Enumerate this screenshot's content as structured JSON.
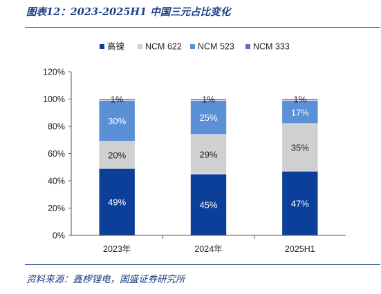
{
  "header": {
    "title": "图表12：2023-2025H1 中国三元占比变化"
  },
  "footer": {
    "source": "资料来源：鑫椤锂电，国盛证券研究所"
  },
  "chart_data": {
    "type": "bar",
    "stacked": true,
    "categories": [
      "2023年",
      "2024年",
      "2025H1"
    ],
    "series": [
      {
        "name": "高镍",
        "color": "#0b3f9a",
        "values": [
          49,
          45,
          47
        ],
        "labels": [
          "49%",
          "45%",
          "47%"
        ],
        "label_color": "#ffffff"
      },
      {
        "name": "NCM 622",
        "color": "#d0d0d0",
        "values": [
          20,
          29,
          35
        ],
        "labels": [
          "20%",
          "29%",
          "35%"
        ],
        "label_color": "#222222"
      },
      {
        "name": "NCM 523",
        "color": "#5b8fd6",
        "values": [
          30,
          25,
          17
        ],
        "labels": [
          "30%",
          "25%",
          "17%"
        ],
        "label_color": "#ffffff"
      },
      {
        "name": "NCM 333",
        "color": "#8a5bbf",
        "values": [
          1,
          1,
          1
        ],
        "labels": [
          "1%",
          "1%",
          "1%"
        ],
        "label_color": "#222222"
      }
    ],
    "yticks": [
      "0%",
      "20%",
      "40%",
      "60%",
      "80%",
      "100%",
      "120%"
    ],
    "ylim": [
      0,
      120
    ],
    "legend_position": "top-center",
    "grid": false
  }
}
